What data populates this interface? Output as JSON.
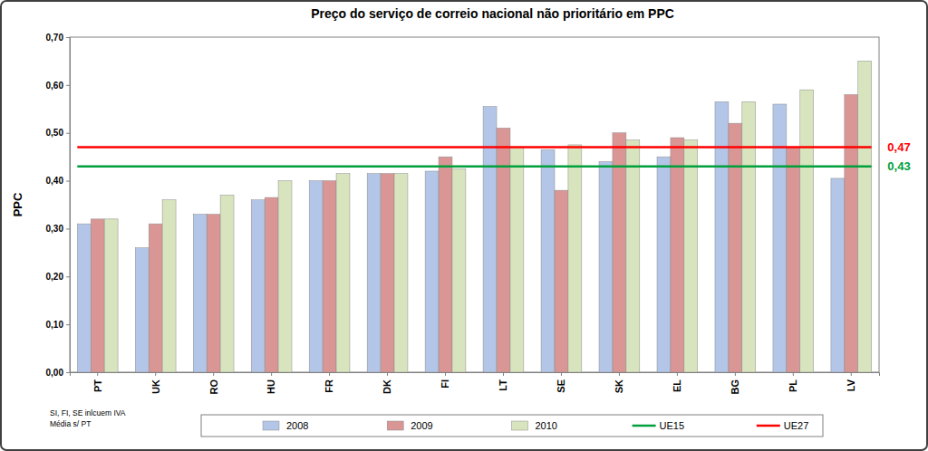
{
  "chart_data": {
    "type": "bar",
    "title": "Preço do serviço de correio nacional não prioritário em PPC",
    "y_label": "PPC",
    "categories": [
      "PT",
      "UK",
      "RO",
      "HU",
      "FR",
      "DK",
      "FI",
      "LT",
      "SE",
      "SK",
      "EL",
      "BG",
      "PL",
      "LV"
    ],
    "series": [
      {
        "name": "2008",
        "type": "bar",
        "color": "#b3c6e7",
        "values": [
          0.31,
          0.26,
          0.33,
          0.36,
          0.4,
          0.415,
          0.42,
          0.555,
          0.465,
          0.44,
          0.45,
          0.565,
          0.56,
          0.405
        ]
      },
      {
        "name": "2009",
        "type": "bar",
        "color": "#d99694",
        "values": [
          0.32,
          0.31,
          0.33,
          0.365,
          0.4,
          0.415,
          0.45,
          0.51,
          0.38,
          0.5,
          0.49,
          0.52,
          0.47,
          0.58
        ]
      },
      {
        "name": "2010",
        "type": "bar",
        "color": "#d7e4bd",
        "values": [
          0.32,
          0.36,
          0.37,
          0.4,
          0.415,
          0.415,
          0.425,
          0.47,
          0.475,
          0.485,
          0.485,
          0.565,
          0.59,
          0.65
        ]
      },
      {
        "name": "UE15",
        "type": "line",
        "color": "#00a03c",
        "values": [
          0.43,
          0.43,
          0.43,
          0.43,
          0.43,
          0.43,
          0.43,
          0.43,
          0.43,
          0.43,
          0.43,
          0.43,
          0.43,
          0.43
        ]
      },
      {
        "name": "UE27",
        "type": "line",
        "color": "#ff0000",
        "values": [
          0.47,
          0.47,
          0.47,
          0.47,
          0.47,
          0.47,
          0.47,
          0.47,
          0.47,
          0.47,
          0.47,
          0.47,
          0.47,
          0.47
        ]
      }
    ],
    "annotations": [
      {
        "text": "0,47",
        "y": 0.47,
        "series": "UE27"
      },
      {
        "text": "0,43",
        "y": 0.43,
        "series": "UE15"
      }
    ],
    "notes": [
      "SI, FI, SE inlcuem IVA",
      "Média s/ PT"
    ],
    "ylim": [
      0,
      0.7
    ],
    "yticks": [
      {
        "value": 0,
        "label": "0,00"
      },
      {
        "value": 0.1,
        "label": "0,10"
      },
      {
        "value": 0.2,
        "label": "0,20"
      },
      {
        "value": 0.3,
        "label": "0,30"
      },
      {
        "value": 0.4,
        "label": "0,40"
      },
      {
        "value": 0.5,
        "label": "0,50"
      },
      {
        "value": 0.6,
        "label": "0,60"
      },
      {
        "value": 0.7,
        "label": "0,70"
      }
    ],
    "grid": false,
    "legend": "bottom"
  }
}
